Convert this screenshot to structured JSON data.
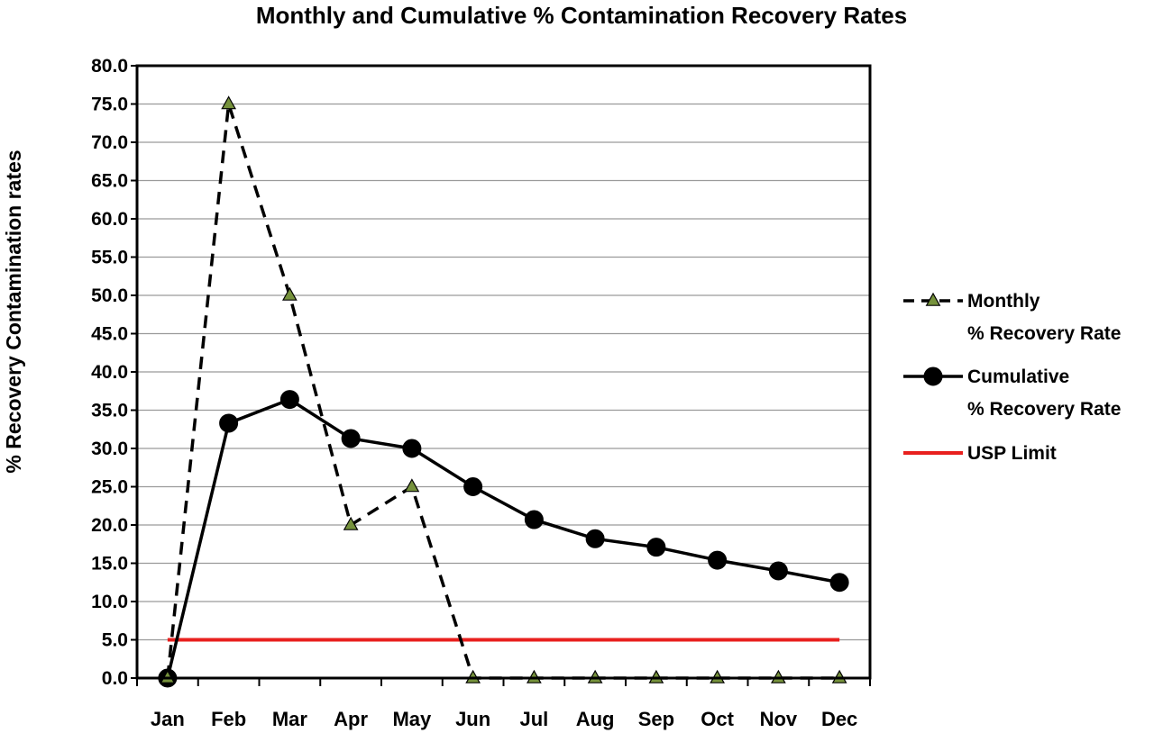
{
  "chart_data": {
    "type": "line",
    "title": "Monthly and Cumulative % Contamination Recovery Rates",
    "xlabel": "",
    "ylabel": "% Recovery Contamination rates",
    "categories": [
      "Jan",
      "Feb",
      "Mar",
      "Apr",
      "May",
      "Jun",
      "Jul",
      "Aug",
      "Sep",
      "Oct",
      "Nov",
      "Dec"
    ],
    "ylim": [
      0,
      80
    ],
    "ytick_step": 5,
    "yticks": [
      "0.0",
      "5.0",
      "10.0",
      "15.0",
      "20.0",
      "25.0",
      "30.0",
      "35.0",
      "40.0",
      "45.0",
      "50.0",
      "55.0",
      "60.0",
      "65.0",
      "70.0",
      "75.0",
      "80.0"
    ],
    "grid": true,
    "legend_position": "right",
    "series": [
      {
        "name_lines": [
          "Monthly",
          "%  Recovery Rate"
        ],
        "style": "dashed",
        "marker": "triangle",
        "color": "#000000",
        "marker_fill": "#76923c",
        "values": [
          0,
          75,
          50,
          20,
          25,
          0,
          0,
          0,
          0,
          0,
          0,
          0
        ]
      },
      {
        "name_lines": [
          "Cumulative",
          "% Recovery Rate"
        ],
        "style": "solid",
        "marker": "circle",
        "color": "#000000",
        "marker_fill": "#000000",
        "values": [
          0,
          33.3,
          36.4,
          31.3,
          30.0,
          25.0,
          20.7,
          18.2,
          17.1,
          15.4,
          14.0,
          12.5
        ]
      },
      {
        "name_lines": [
          "USP Limit"
        ],
        "style": "solid",
        "marker": "none",
        "color": "#e8201e",
        "values": [
          5,
          5,
          5,
          5,
          5,
          5,
          5,
          5,
          5,
          5,
          5,
          5
        ]
      }
    ]
  }
}
